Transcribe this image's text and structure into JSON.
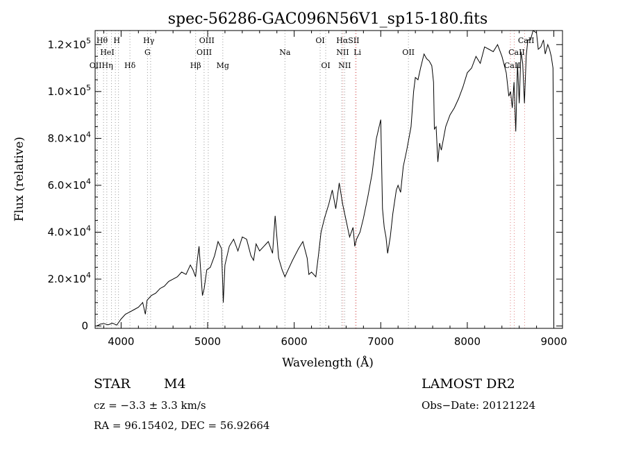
{
  "chart_data": {
    "type": "line",
    "title": "spec-56286-GAC096N56V1_sp15-180.fits",
    "xlabel": "Wavelength (Å)",
    "ylabel": "Flux (relative)",
    "xlim": [
      3700,
      9100
    ],
    "ylim": [
      -1000,
      126000
    ],
    "x_ticks": [
      4000,
      5000,
      6000,
      7000,
      8000,
      9000
    ],
    "x_tick_labels": [
      "4000",
      "5000",
      "6000",
      "7000",
      "8000",
      "9000"
    ],
    "y_ticks": [
      0,
      20000,
      40000,
      60000,
      80000,
      100000,
      120000
    ],
    "y_tick_labels": [
      {
        "mant": "0",
        "exp": ""
      },
      {
        "mant": "2.0×10",
        "exp": "4"
      },
      {
        "mant": "4.0×10",
        "exp": "4"
      },
      {
        "mant": "6.0×10",
        "exp": "4"
      },
      {
        "mant": "8.0×10",
        "exp": "4"
      },
      {
        "mant": "1.0×10",
        "exp": "5"
      },
      {
        "mant": "1.2×10",
        "exp": "5"
      }
    ],
    "grid": false,
    "legend": "none",
    "series": [
      {
        "color": "#000000",
        "x": [
          3720,
          3760,
          3800,
          3850,
          3900,
          3950,
          3980,
          4000,
          4050,
          4100,
          4150,
          4200,
          4250,
          4280,
          4300,
          4350,
          4400,
          4450,
          4500,
          4550,
          4600,
          4650,
          4700,
          4750,
          4800,
          4830,
          4860,
          4880,
          4900,
          4940,
          4960,
          4990,
          5030,
          5080,
          5120,
          5160,
          5180,
          5200,
          5250,
          5300,
          5350,
          5400,
          5450,
          5500,
          5530,
          5560,
          5600,
          5650,
          5700,
          5750,
          5780,
          5820,
          5860,
          5893,
          5930,
          5980,
          6050,
          6100,
          6150,
          6170,
          6200,
          6250,
          6280,
          6310,
          6350,
          6400,
          6440,
          6480,
          6520,
          6560,
          6600,
          6640,
          6680,
          6700,
          6720,
          6760,
          6800,
          6850,
          6900,
          6950,
          7000,
          7020,
          7040,
          7060,
          7080,
          7110,
          7140,
          7180,
          7200,
          7230,
          7260,
          7300,
          7350,
          7380,
          7400,
          7430,
          7460,
          7500,
          7530,
          7560,
          7590,
          7610,
          7620,
          7640,
          7660,
          7680,
          7700,
          7750,
          7800,
          7850,
          7900,
          7950,
          8000,
          8050,
          8100,
          8150,
          8200,
          8250,
          8300,
          8350,
          8400,
          8450,
          8480,
          8500,
          8520,
          8540,
          8560,
          8580,
          8600,
          8620,
          8640,
          8660,
          8680,
          8700,
          8730,
          8760,
          8800,
          8820,
          8850,
          8880,
          8900,
          8930,
          8950,
          8970,
          8990,
          9000,
          9000
        ],
        "y": [
          0,
          800,
          1000,
          500,
          1200,
          400,
          2000,
          3000,
          5000,
          6000,
          7000,
          8000,
          10000,
          5000,
          11000,
          13000,
          14000,
          16000,
          17000,
          19000,
          20000,
          21000,
          23000,
          22000,
          26000,
          24000,
          21000,
          28000,
          34000,
          13000,
          16000,
          24000,
          25000,
          30000,
          36000,
          33000,
          10000,
          26000,
          34000,
          37000,
          32000,
          38000,
          37000,
          30000,
          28000,
          35000,
          32000,
          34000,
          36000,
          31000,
          47000,
          29000,
          24000,
          21000,
          24000,
          28000,
          33000,
          36000,
          29000,
          22000,
          23000,
          21000,
          30000,
          40000,
          46000,
          52000,
          58000,
          50000,
          61000,
          52000,
          45000,
          38000,
          42000,
          34000,
          37000,
          40000,
          46000,
          55000,
          65000,
          80000,
          88000,
          50000,
          42000,
          38000,
          31000,
          38000,
          48000,
          58000,
          60000,
          57000,
          68000,
          75000,
          85000,
          100000,
          106000,
          105000,
          110000,
          116000,
          114000,
          113000,
          111000,
          104000,
          84000,
          85000,
          70000,
          78000,
          75000,
          85000,
          90000,
          93000,
          97000,
          102000,
          108000,
          110000,
          115000,
          112000,
          119000,
          118000,
          117000,
          120000,
          115000,
          108000,
          98000,
          100000,
          93000,
          104000,
          83000,
          112000,
          95000,
          117000,
          112000,
          95000,
          115000,
          122000,
          122000,
          126000,
          125000,
          118000,
          119000,
          122000,
          116000,
          120000,
          118000,
          115000,
          110000,
          60000,
          0
        ]
      }
    ],
    "lines": [
      {
        "wave": 3727,
        "color": "#999999"
      },
      {
        "wave": 3797,
        "color": "#999999"
      },
      {
        "wave": 3835,
        "color": "#999999"
      },
      {
        "wave": 3889,
        "color": "#999999"
      },
      {
        "wave": 3934,
        "color": "#999999"
      },
      {
        "wave": 3970,
        "color": "#999999"
      },
      {
        "wave": 4102,
        "color": "#999999"
      },
      {
        "wave": 4305,
        "color": "#999999"
      },
      {
        "wave": 4341,
        "color": "#999999"
      },
      {
        "wave": 4861,
        "color": "#999999"
      },
      {
        "wave": 4959,
        "color": "#999999"
      },
      {
        "wave": 5007,
        "color": "#999999"
      },
      {
        "wave": 5175,
        "color": "#999999"
      },
      {
        "wave": 5893,
        "color": "#999999"
      },
      {
        "wave": 6300,
        "color": "#999999"
      },
      {
        "wave": 6364,
        "color": "#999999"
      },
      {
        "wave": 6548,
        "color": "#999999"
      },
      {
        "wave": 6563,
        "color": "#e08080"
      },
      {
        "wave": 6583,
        "color": "#999999"
      },
      {
        "wave": 6708,
        "color": "#e08080"
      },
      {
        "wave": 6716,
        "color": "#e08080"
      },
      {
        "wave": 7320,
        "color": "#999999"
      },
      {
        "wave": 8498,
        "color": "#e08080"
      },
      {
        "wave": 8542,
        "color": "#e08080"
      },
      {
        "wave": 8662,
        "color": "#e08080"
      }
    ],
    "line_labels": [
      {
        "text": "Hθ",
        "wave": 3780,
        "row": 0
      },
      {
        "text": "H",
        "wave": 3950,
        "row": 0
      },
      {
        "text": "Hγ",
        "wave": 4320,
        "row": 0
      },
      {
        "text": "OIII",
        "wave": 4990,
        "row": 0
      },
      {
        "text": "OI",
        "wave": 6300,
        "row": 0
      },
      {
        "text": "HαSII",
        "wave": 6620,
        "row": 0
      },
      {
        "text": "CaII",
        "wave": 8680,
        "row": 0
      },
      {
        "text": "HeI",
        "wave": 3840,
        "row": 1
      },
      {
        "text": "G",
        "wave": 4305,
        "row": 1
      },
      {
        "text": "OIII",
        "wave": 4960,
        "row": 1
      },
      {
        "text": "Na",
        "wave": 5893,
        "row": 1
      },
      {
        "text": "NII",
        "wave": 6560,
        "row": 1
      },
      {
        "text": "Li",
        "wave": 6730,
        "row": 1
      },
      {
        "text": "OII",
        "wave": 7320,
        "row": 1
      },
      {
        "text": "CaII",
        "wave": 8570,
        "row": 1
      },
      {
        "text": "OIIHη",
        "wave": 3770,
        "row": 2
      },
      {
        "text": "Hδ",
        "wave": 4102,
        "row": 2
      },
      {
        "text": "Hβ",
        "wave": 4861,
        "row": 2
      },
      {
        "text": "Mg",
        "wave": 5175,
        "row": 2
      },
      {
        "text": "OI",
        "wave": 6364,
        "row": 2
      },
      {
        "text": "NII",
        "wave": 6583,
        "row": 2
      },
      {
        "text": "CaII",
        "wave": 8520,
        "row": 2
      }
    ]
  },
  "info": {
    "object_class": "STAR",
    "subclass": "M4",
    "survey": "LAMOST DR2",
    "cz": "cz = −3.3 ± 3.3 km/s",
    "obs_date": "Obs−Date: 20121224",
    "coords": "RA =  96.15402, DEC =  56.92664"
  }
}
